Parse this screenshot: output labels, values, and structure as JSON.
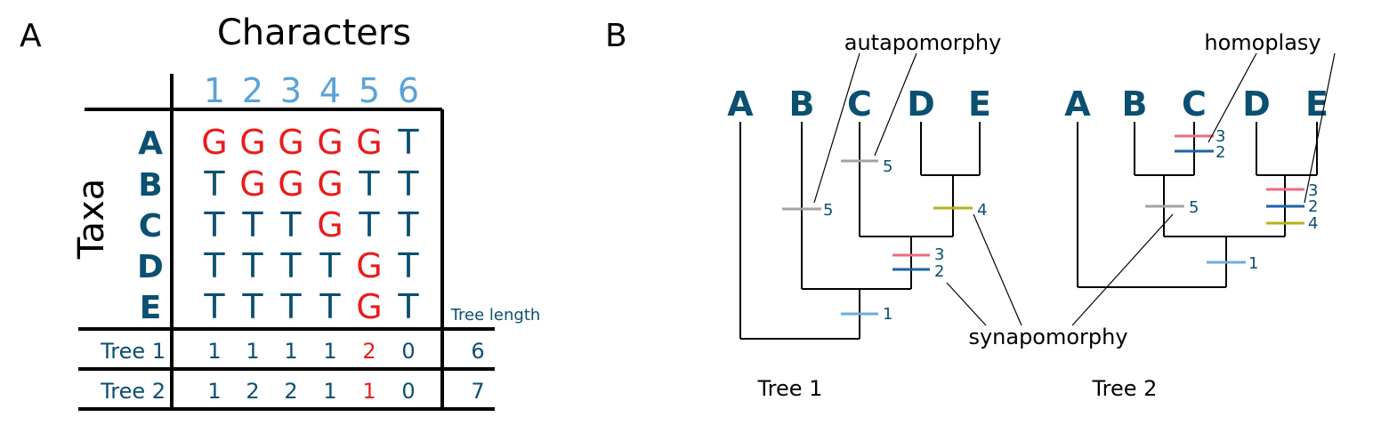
{
  "colors": {
    "dark_blue": "#0b4f71",
    "light_blue": "#5aa3d8",
    "red": "#ea1c1c",
    "black": "#000000",
    "grey_tick": "#a8a29d",
    "pink_tick": "#ee6b82",
    "blue_tick": "#1d62a6",
    "olive_tick": "#b5b51d",
    "lightblue_tick": "#6aaee0"
  },
  "panel_a": {
    "label": "A",
    "title": "Characters",
    "row_header": "Taxa",
    "columns": [
      "1",
      "2",
      "3",
      "4",
      "5",
      "6"
    ],
    "rows": [
      {
        "taxon": "A",
        "states": [
          "G",
          "G",
          "G",
          "G",
          "G",
          "T"
        ],
        "red": [
          true,
          true,
          true,
          true,
          true,
          false
        ]
      },
      {
        "taxon": "B",
        "states": [
          "T",
          "G",
          "G",
          "G",
          "T",
          "T"
        ],
        "red": [
          false,
          true,
          true,
          true,
          false,
          false
        ]
      },
      {
        "taxon": "C",
        "states": [
          "T",
          "T",
          "T",
          "G",
          "T",
          "T"
        ],
        "red": [
          false,
          false,
          false,
          true,
          false,
          false
        ]
      },
      {
        "taxon": "D",
        "states": [
          "T",
          "T",
          "T",
          "T",
          "G",
          "T"
        ],
        "red": [
          false,
          false,
          false,
          false,
          true,
          false
        ]
      },
      {
        "taxon": "E",
        "states": [
          "T",
          "T",
          "T",
          "T",
          "G",
          "T"
        ],
        "red": [
          false,
          false,
          false,
          false,
          true,
          false
        ]
      }
    ],
    "tree_length_label": "Tree length",
    "trees": [
      {
        "name": "Tree 1",
        "steps": [
          "1",
          "1",
          "1",
          "1",
          "2",
          "0"
        ],
        "red": [
          false,
          false,
          false,
          false,
          true,
          false
        ],
        "length": "6"
      },
      {
        "name": "Tree 2",
        "steps": [
          "1",
          "2",
          "2",
          "1",
          "1",
          "0"
        ],
        "red": [
          false,
          false,
          false,
          false,
          true,
          false
        ],
        "length": "7"
      }
    ]
  },
  "panel_b": {
    "label": "B",
    "annotations": {
      "autapomorphy": "autapomorphy",
      "homoplasy": "homoplasy",
      "synapomorphy": "synapomorphy"
    },
    "tree1": {
      "caption": "Tree 1",
      "taxa": [
        "A",
        "B",
        "C",
        "D",
        "E"
      ],
      "ticks": [
        {
          "char": "5",
          "color": "grey"
        },
        {
          "char": "5",
          "color": "grey"
        },
        {
          "char": "4",
          "color": "olive"
        },
        {
          "char": "3",
          "color": "pink"
        },
        {
          "char": "2",
          "color": "blue"
        },
        {
          "char": "1",
          "color": "lightblue"
        }
      ]
    },
    "tree2": {
      "caption": "Tree 2",
      "taxa": [
        "A",
        "B",
        "C",
        "D",
        "E"
      ],
      "ticks": [
        {
          "char": "3",
          "color": "pink"
        },
        {
          "char": "2",
          "color": "blue"
        },
        {
          "char": "5",
          "color": "grey"
        },
        {
          "char": "3",
          "color": "pink"
        },
        {
          "char": "2",
          "color": "blue"
        },
        {
          "char": "4",
          "color": "olive"
        },
        {
          "char": "1",
          "color": "lightblue"
        }
      ]
    }
  }
}
